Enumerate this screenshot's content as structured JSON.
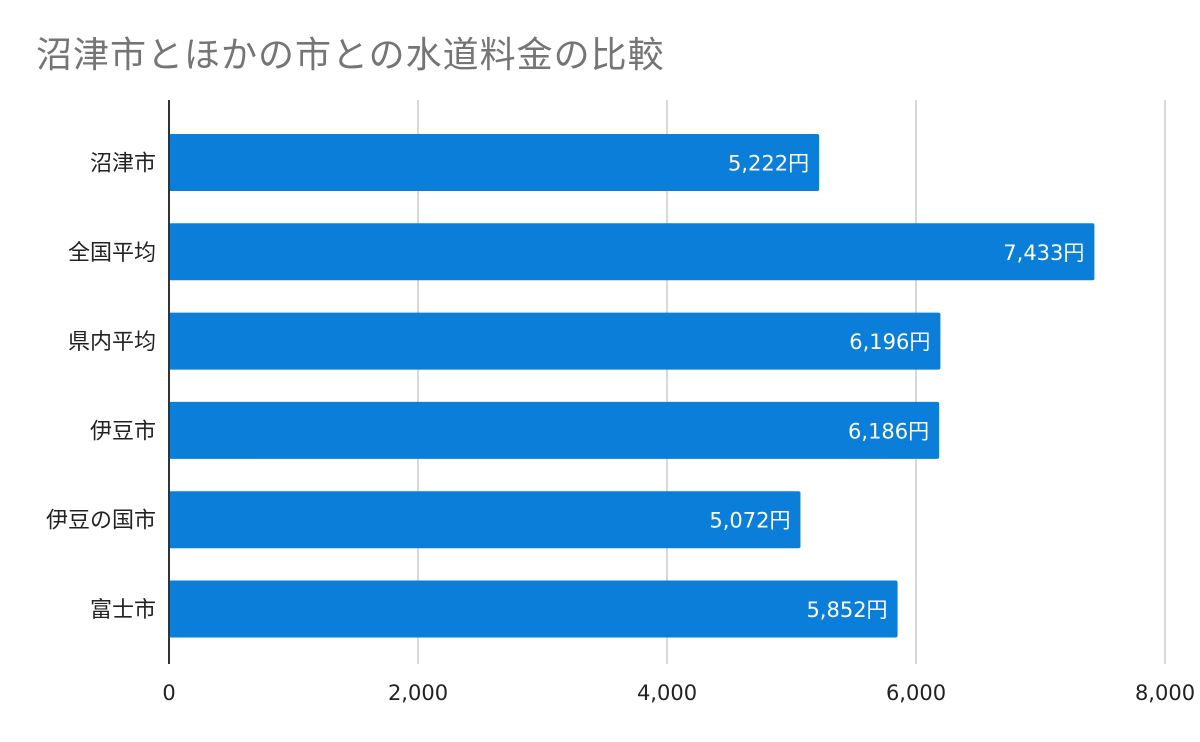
{
  "chart_data": {
    "type": "bar",
    "orientation": "horizontal",
    "title": "沼津市とほかの市との水道料金の比較",
    "categories": [
      "沼津市",
      "全国平均",
      "県内平均",
      "伊豆市",
      "伊豆の国市",
      "富士市"
    ],
    "values": [
      5222,
      7433,
      6196,
      6186,
      5072,
      5852
    ],
    "data_labels": [
      "5,222円",
      "7,433円",
      "6,196円",
      "6,186円",
      "5,072円",
      "5,852円"
    ],
    "xlim": [
      0,
      8000
    ],
    "ticks": [
      0,
      2000,
      4000,
      6000,
      8000
    ],
    "tick_labels": [
      "0",
      "2,000",
      "4,000",
      "6,000",
      "8,000"
    ],
    "xlabel": "",
    "ylabel": "",
    "grid": true,
    "legend": "none",
    "bar_color": "#0a7ed8"
  }
}
